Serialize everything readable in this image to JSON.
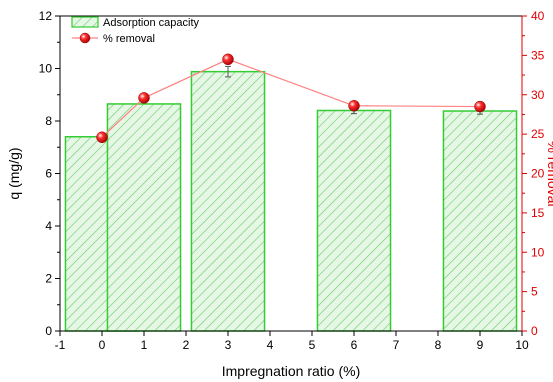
{
  "chart_data": {
    "type": "bar",
    "xlabel": "Impregnation ratio (%)",
    "ylabel_left": "q (mg/g)",
    "ylabel_right": "% removal",
    "xlim": [
      -1,
      10
    ],
    "x_ticks": [
      -1,
      0,
      1,
      2,
      3,
      4,
      5,
      6,
      7,
      8,
      9,
      10
    ],
    "ylim_left": [
      0,
      12
    ],
    "y_ticks_left": [
      0,
      2,
      4,
      6,
      8,
      10,
      12
    ],
    "ylim_right": [
      0,
      40
    ],
    "y_ticks_right": [
      0,
      5,
      10,
      15,
      20,
      25,
      30,
      35,
      40
    ],
    "grid": false,
    "legend_position": "top-left",
    "colors": {
      "bar_edge": "#33cc33",
      "bar_fill": "#e6f7e6",
      "bar_hatch": "#66cc66",
      "line": "#ff8080",
      "marker": "#e00000",
      "right_axis": "#e00000"
    },
    "series": [
      {
        "name": "Adsorption capacity",
        "kind": "bar",
        "axis": "left",
        "x": [
          0,
          1,
          3,
          6,
          9
        ],
        "values": [
          7.4,
          8.65,
          9.88,
          8.4,
          8.38
        ],
        "errors": [
          0,
          0,
          0.2,
          0.12,
          0.12
        ]
      },
      {
        "name": "% removal",
        "kind": "line",
        "axis": "right",
        "x": [
          0,
          1,
          3,
          6,
          9
        ],
        "values": [
          24.6,
          29.6,
          34.5,
          28.6,
          28.5
        ]
      }
    ]
  }
}
